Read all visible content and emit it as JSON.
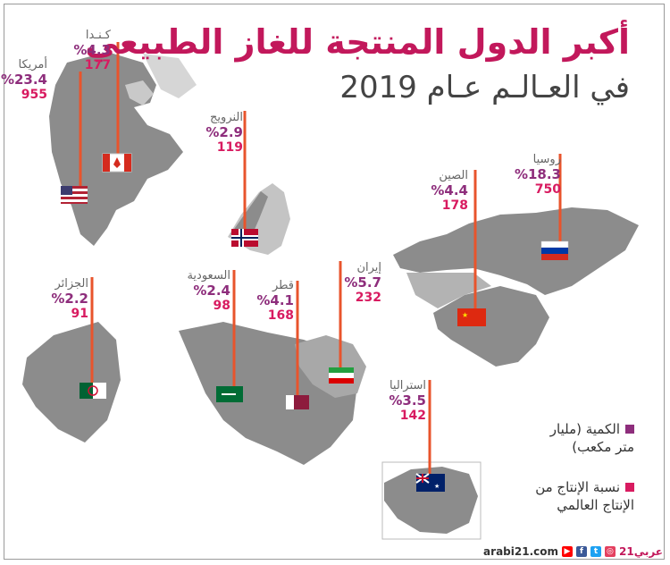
{
  "title": {
    "line1": "أكبر الدول المنتجة للغاز الطبيعي",
    "line2": "في العـالـم عـام 2019"
  },
  "countries": [
    {
      "name": "كـنـدا",
      "pct": "%4.3",
      "qty": "177",
      "flag": "canada-flag"
    },
    {
      "name": "أمريكا",
      "pct": "%23.4",
      "qty": "955",
      "flag": "usa-flag"
    },
    {
      "name": "النرويج",
      "pct": "%2.9",
      "qty": "119",
      "flag": "norway-flag"
    },
    {
      "name": "روسيا",
      "pct": "%18.3",
      "qty": "750",
      "flag": "russia-flag"
    },
    {
      "name": "الصين",
      "pct": "%4.4",
      "qty": "178",
      "flag": "china-flag"
    },
    {
      "name": "الجزائر",
      "pct": "%2.2",
      "qty": "91",
      "flag": "algeria-flag"
    },
    {
      "name": "السعودية",
      "pct": "%2.4",
      "qty": "98",
      "flag": "saudi-flag"
    },
    {
      "name": "قطر",
      "pct": "%4.1",
      "qty": "168",
      "flag": "qatar-flag"
    },
    {
      "name": "إيران",
      "pct": "%5.7",
      "qty": "232",
      "flag": "iran-flag"
    },
    {
      "name": "استراليا",
      "pct": "%3.5",
      "qty": "142",
      "flag": "australia-flag"
    }
  ],
  "legend": {
    "quantity_line1": "الكمية (مليار",
    "quantity_line2": "متر مكعب)",
    "share_line1": "نسبة الإنتاج من",
    "share_line2": "الإنتاج العالمي",
    "quantity_color": "#8e2e7c",
    "share_color": "#d81b60"
  },
  "footer": {
    "site": "arabi21.com",
    "brand": "عربي21"
  },
  "colors": {
    "pin": "#e8542c",
    "map": "#8c8c8c",
    "map_light": "#c9c9c9"
  }
}
